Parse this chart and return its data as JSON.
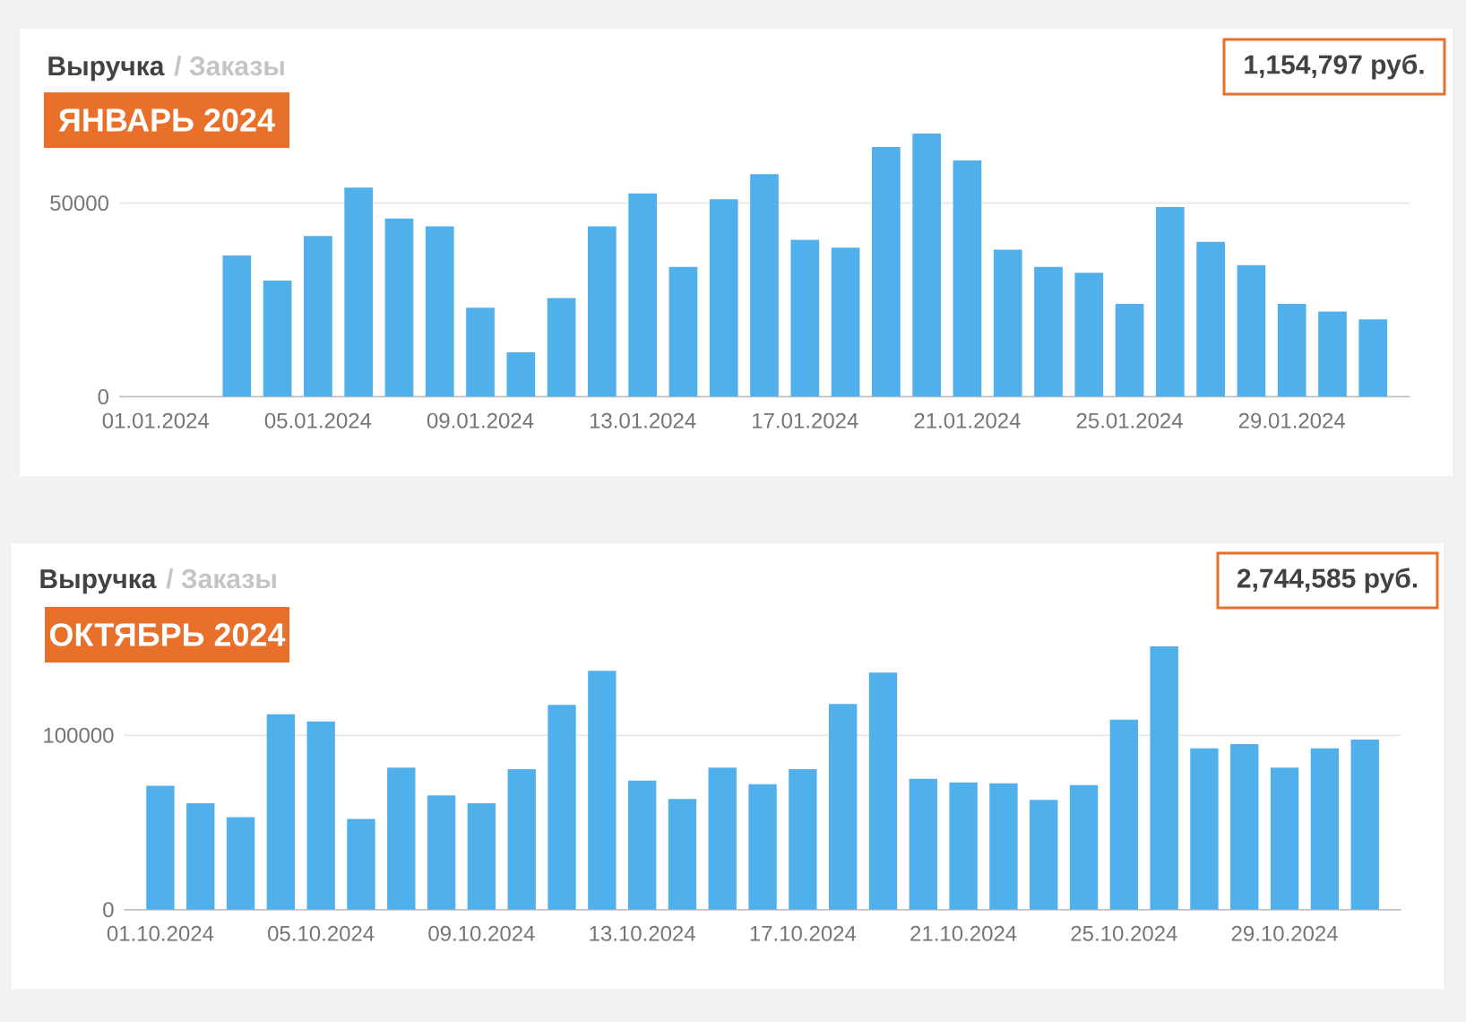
{
  "chart_data": [
    {
      "type": "bar",
      "title": "Выручка",
      "subtitle": "ЯНВАРЬ 2024",
      "annotations": [
        "/ Заказы",
        "1,154,797 руб."
      ],
      "categories": [
        "01.01.2024",
        null,
        null,
        null,
        "05.01.2024",
        null,
        null,
        null,
        "09.01.2024",
        null,
        null,
        null,
        "13.01.2024",
        null,
        null,
        null,
        "17.01.2024",
        null,
        null,
        null,
        "21.01.2024",
        null,
        null,
        null,
        "25.01.2024",
        null,
        null,
        null,
        "29.01.2024",
        null,
        null
      ],
      "values": [
        null,
        null,
        36500,
        30000,
        41500,
        54000,
        46000,
        44000,
        23000,
        11500,
        25500,
        44000,
        52500,
        33500,
        51000,
        57500,
        40500,
        38500,
        64500,
        68000,
        61000,
        38000,
        33500,
        32000,
        24000,
        49000,
        40000,
        34000,
        24000,
        22000,
        20000
      ],
      "color": "#50b0ec",
      "ylim": [
        0,
        68000
      ],
      "yticks": [
        0,
        50000
      ],
      "grid": "y"
    },
    {
      "type": "bar",
      "title": "Выручка",
      "subtitle": "ОКТЯБРЬ 2024",
      "annotations": [
        "/ Заказы",
        "2,744,585 руб."
      ],
      "categories": [
        "01.10.2024",
        null,
        null,
        null,
        "05.10.2024",
        null,
        null,
        null,
        "09.10.2024",
        null,
        null,
        null,
        "13.10.2024",
        null,
        null,
        null,
        "17.10.2024",
        null,
        null,
        null,
        "21.10.2024",
        null,
        null,
        null,
        "25.10.2024",
        null,
        null,
        null,
        "29.10.2024",
        null,
        null
      ],
      "values": [
        71000,
        61000,
        53000,
        112000,
        108000,
        52000,
        81500,
        65500,
        61000,
        80500,
        117500,
        137000,
        74000,
        63500,
        81500,
        72000,
        80500,
        118000,
        136000,
        75000,
        73000,
        72500,
        63000,
        71500,
        109000,
        151000,
        92500,
        95000,
        81500,
        92500,
        97500
      ],
      "color": "#50b0ec",
      "ylim": [
        0,
        151000
      ],
      "yticks": [
        0,
        100000
      ],
      "grid": "y"
    }
  ]
}
